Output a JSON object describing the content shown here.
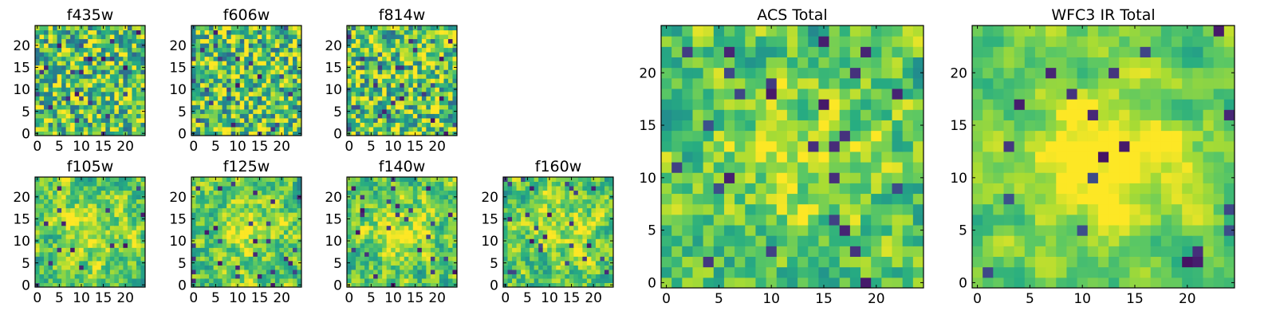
{
  "chart_data": [
    {
      "type": "heatmap",
      "title": "f435w",
      "xticks": [
        0,
        5,
        10,
        15,
        20
      ],
      "yticks": [
        0,
        5,
        10,
        15,
        20
      ],
      "xlim": [
        0,
        25
      ],
      "ylim": [
        0,
        25
      ],
      "grid": 25,
      "colormap": "viridis",
      "seed": 11,
      "smooth": 0
    },
    {
      "type": "heatmap",
      "title": "f606w",
      "xticks": [
        0,
        5,
        10,
        15,
        20
      ],
      "yticks": [
        0,
        5,
        10,
        15,
        20
      ],
      "xlim": [
        0,
        25
      ],
      "ylim": [
        0,
        25
      ],
      "grid": 25,
      "colormap": "viridis",
      "seed": 23,
      "smooth": 0
    },
    {
      "type": "heatmap",
      "title": "f814w",
      "xticks": [
        0,
        5,
        10,
        15,
        20
      ],
      "yticks": [
        0,
        5,
        10,
        15,
        20
      ],
      "xlim": [
        0,
        25
      ],
      "ylim": [
        0,
        25
      ],
      "grid": 25,
      "colormap": "viridis",
      "seed": 37,
      "smooth": 0
    },
    {
      "type": "heatmap",
      "title": "f105w",
      "xticks": [
        0,
        5,
        10,
        15,
        20
      ],
      "yticks": [
        0,
        5,
        10,
        15,
        20
      ],
      "xlim": [
        0,
        25
      ],
      "ylim": [
        0,
        25
      ],
      "grid": 25,
      "colormap": "viridis",
      "seed": 41,
      "smooth": 1
    },
    {
      "type": "heatmap",
      "title": "f125w",
      "xticks": [
        0,
        5,
        10,
        15,
        20
      ],
      "yticks": [
        0,
        5,
        10,
        15,
        20
      ],
      "xlim": [
        0,
        25
      ],
      "ylim": [
        0,
        25
      ],
      "grid": 25,
      "colormap": "viridis",
      "seed": 53,
      "smooth": 1
    },
    {
      "type": "heatmap",
      "title": "f140w",
      "xticks": [
        0,
        5,
        10,
        15,
        20
      ],
      "yticks": [
        0,
        5,
        10,
        15,
        20
      ],
      "xlim": [
        0,
        25
      ],
      "ylim": [
        0,
        25
      ],
      "grid": 25,
      "colormap": "viridis",
      "seed": 67,
      "smooth": 1
    },
    {
      "type": "heatmap",
      "title": "f160w",
      "xticks": [
        0,
        5,
        10,
        15,
        20
      ],
      "yticks": [
        0,
        5,
        10,
        15,
        20
      ],
      "xlim": [
        0,
        25
      ],
      "ylim": [
        0,
        25
      ],
      "grid": 25,
      "colormap": "viridis",
      "seed": 79,
      "smooth": 1
    },
    {
      "type": "heatmap",
      "title": "ACS Total",
      "xticks": [
        0,
        5,
        10,
        15,
        20
      ],
      "yticks": [
        0,
        5,
        10,
        15,
        20
      ],
      "xlim": [
        0,
        25
      ],
      "ylim": [
        0,
        25
      ],
      "grid": 25,
      "colormap": "viridis",
      "seed": 89,
      "smooth": 1
    },
    {
      "type": "heatmap",
      "title": "WFC3 IR Total",
      "xticks": [
        0,
        5,
        10,
        15,
        20
      ],
      "yticks": [
        0,
        5,
        10,
        15,
        20
      ],
      "xlim": [
        0,
        25
      ],
      "ylim": [
        0,
        25
      ],
      "grid": 25,
      "colormap": "viridis",
      "seed": 97,
      "smooth": 2
    }
  ]
}
